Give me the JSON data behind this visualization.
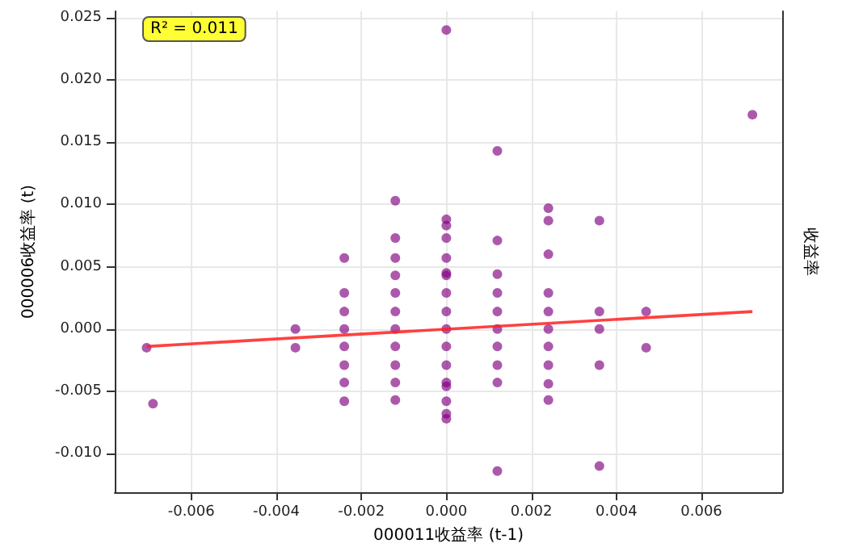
{
  "chart_data": {
    "type": "scatter",
    "xlabel": "000011收益率 (t-1)",
    "ylabel": "000006收益率 (t)",
    "y2label": "收益率",
    "annotations": [
      "R² = 0.011"
    ],
    "xlim": [
      -0.0078,
      0.0079
    ],
    "ylim": [
      -0.0131,
      0.0255
    ],
    "xticks": [
      {
        "value": -0.006,
        "label": "-0.006"
      },
      {
        "value": -0.004,
        "label": "-0.004"
      },
      {
        "value": -0.002,
        "label": "-0.002"
      },
      {
        "value": 0,
        "label": "0.000"
      },
      {
        "value": 0.002,
        "label": "0.002"
      },
      {
        "value": 0.004,
        "label": "0.004"
      },
      {
        "value": 0.006,
        "label": "0.006"
      }
    ],
    "yticks": [
      {
        "value": -0.01,
        "label": "-0.010"
      },
      {
        "value": -0.005,
        "label": "-0.005"
      },
      {
        "value": 0,
        "label": "0.000"
      },
      {
        "value": 0.005,
        "label": "0.005"
      },
      {
        "value": 0.01,
        "label": "0.010"
      },
      {
        "value": 0.015,
        "label": "0.015"
      },
      {
        "value": 0.02,
        "label": "0.020"
      },
      {
        "value": 0.025,
        "label": "0.025"
      }
    ],
    "grid": true,
    "marker": "circle",
    "series": [
      {
        "color": "#800080",
        "x": [
          -0.00705,
          -0.0069,
          -0.00355,
          -0.00355,
          -0.0024,
          -0.0024,
          -0.0024,
          -0.0024,
          -0.0024,
          -0.0024,
          -0.0024,
          -0.0024,
          -0.0012,
          -0.0012,
          -0.0012,
          -0.0012,
          -0.0012,
          -0.0012,
          -0.0012,
          -0.0012,
          -0.0012,
          -0.0012,
          -0.0012,
          0,
          0,
          0,
          0,
          0,
          0,
          0,
          0,
          0,
          0,
          0,
          0,
          0,
          0,
          0,
          0,
          0,
          0.0012,
          0.0012,
          0.0012,
          0.0012,
          0.0012,
          0.0012,
          0.0012,
          0.0012,
          0.0012,
          0.0012,
          0.0024,
          0.0024,
          0.0024,
          0.0024,
          0.0024,
          0.0024,
          0.0024,
          0.0024,
          0.0024,
          0.0024,
          0.0036,
          0.0036,
          0.0036,
          0.0036,
          0.0036,
          0.0047,
          0.0047,
          0.0072
        ],
        "values": [
          -0.0015,
          -0.006,
          0,
          -0.0015,
          0.0057,
          0.0029,
          0.0014,
          0,
          -0.0014,
          -0.0029,
          -0.0043,
          -0.0058,
          0.0103,
          0.0073,
          0.0057,
          0.0043,
          0.0029,
          0.0014,
          0,
          -0.0014,
          -0.0029,
          -0.0043,
          -0.0057,
          0.024,
          0.0088,
          0.0083,
          0.0073,
          0.0057,
          0.0045,
          0.0043,
          0.0029,
          0.0014,
          0,
          -0.0014,
          -0.0029,
          -0.0043,
          -0.0046,
          -0.0058,
          -0.0068,
          -0.0072,
          0.0143,
          0.0071,
          0.0044,
          0.0029,
          0.0014,
          0,
          -0.0014,
          -0.0029,
          -0.0043,
          -0.0114,
          0.0097,
          0.0087,
          0.006,
          0.0029,
          0.0014,
          0,
          -0.0014,
          -0.0029,
          -0.0044,
          -0.0057,
          0.0087,
          0.0014,
          0,
          -0.0029,
          -0.011,
          0.0014,
          -0.0015,
          0.0172
        ]
      },
      {
        "type": "line",
        "color": "#ff2020",
        "marker": "none",
        "x": [
          -0.00705,
          0.0072
        ],
        "values": [
          -0.0014,
          0.0014
        ]
      }
    ]
  }
}
